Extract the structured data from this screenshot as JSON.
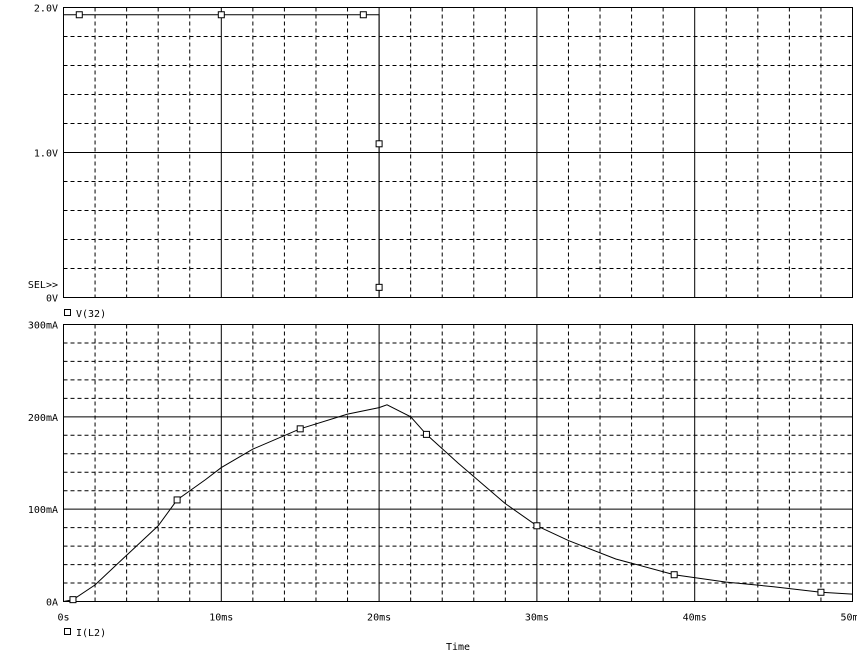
{
  "chart_data": [
    {
      "type": "line",
      "panel": "top",
      "xlim": [
        0,
        50
      ],
      "ylim": [
        0,
        2.0
      ],
      "y_ticks": [
        "0V",
        "1.0V",
        "2.0V"
      ],
      "selector": "SEL>>",
      "series": [
        {
          "name": "V(32)",
          "x": [
            0,
            20,
            20,
            50
          ],
          "y": [
            1.95,
            1.95,
            0,
            0
          ],
          "markers": [
            [
              1,
              1.95
            ],
            [
              10,
              1.95
            ],
            [
              19,
              1.95
            ],
            [
              20,
              1.06
            ],
            [
              20,
              0.07
            ]
          ]
        }
      ]
    },
    {
      "type": "line",
      "panel": "bottom",
      "xlim": [
        0,
        50
      ],
      "ylim": [
        0,
        300
      ],
      "y_ticks": [
        "0A",
        "100mA",
        "200mA",
        "300mA"
      ],
      "x_ticks": [
        "0s",
        "10ms",
        "20ms",
        "30ms",
        "40ms",
        "50ms"
      ],
      "xlabel": "Time",
      "series": [
        {
          "name": "I(L2)",
          "x": [
            0,
            0.6,
            2,
            4,
            6,
            7.2,
            9,
            10,
            12,
            15,
            18,
            20,
            20.5,
            22,
            23,
            25,
            28,
            30,
            32,
            35,
            38.7,
            42,
            45,
            48,
            50
          ],
          "y": [
            0,
            2,
            18,
            50,
            82,
            110,
            132,
            145,
            165,
            187,
            203,
            210,
            213,
            200,
            181,
            150,
            106,
            82,
            66,
            46,
            29,
            21,
            16,
            10,
            8
          ],
          "markers": [
            [
              0.6,
              2
            ],
            [
              7.2,
              110
            ],
            [
              15,
              187
            ],
            [
              23,
              181
            ],
            [
              30,
              82
            ],
            [
              38.7,
              29
            ],
            [
              48,
              10
            ]
          ]
        }
      ]
    }
  ]
}
